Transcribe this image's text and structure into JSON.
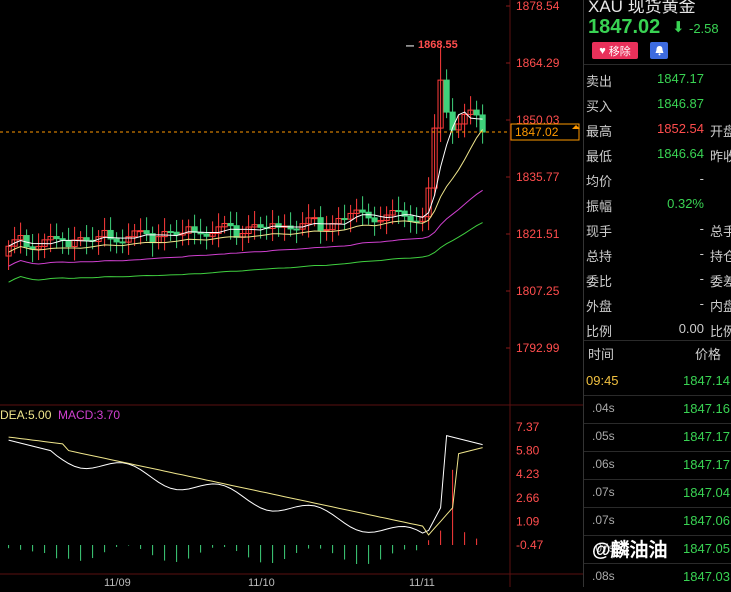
{
  "header": {
    "title": "XAU 现货黄金",
    "price": "1847.02",
    "change": "-2.58",
    "remove_label": "移除"
  },
  "quote_rows": [
    {
      "label": "卖出",
      "value": "1847.17",
      "color": "#39d353",
      "label2": ""
    },
    {
      "label": "买入",
      "value": "1846.87",
      "color": "#39d353",
      "label2": ""
    },
    {
      "label": "最高",
      "value": "1852.54",
      "color": "#ff4d4d",
      "label2": "开盘"
    },
    {
      "label": "最低",
      "value": "1846.64",
      "color": "#39d353",
      "label2": "昨收"
    },
    {
      "label": "均价",
      "value": "-",
      "color": "#cccccc",
      "label2": ""
    },
    {
      "label": "振幅",
      "value": "0.32%",
      "color": "#39d353",
      "label2": ""
    },
    {
      "label": "现手",
      "value": "-",
      "color": "#cccccc",
      "label2": "总手"
    },
    {
      "label": "总持",
      "value": "-",
      "color": "#cccccc",
      "label2": "持仓"
    },
    {
      "label": "委比",
      "value": "-",
      "color": "#cccccc",
      "label2": "委差"
    },
    {
      "label": "外盘",
      "value": "-",
      "color": "#cccccc",
      "label2": "内盘"
    },
    {
      "label": "比例",
      "value": "0.00",
      "color": "#cccccc",
      "label2": "比例"
    }
  ],
  "ticks_header": {
    "time": "时间",
    "price": "价格"
  },
  "ticks": [
    {
      "time": "09:45",
      "price": "1847.14"
    },
    {
      "time": ".04s",
      "price": "1847.16"
    },
    {
      "time": ".05s",
      "price": "1847.17"
    },
    {
      "time": ".06s",
      "price": "1847.17"
    },
    {
      "time": ".07s",
      "price": "1847.04"
    },
    {
      "time": ".07s",
      "price": "1847.06"
    },
    {
      "time": ".07s",
      "price": "1847.05"
    },
    {
      "time": ".08s",
      "price": "1847.03"
    }
  ],
  "watermark": "@麟油油",
  "chart": {
    "price_axis": [
      "1878.54",
      "1864.29",
      "1850.03",
      "1835.77",
      "1821.51",
      "1807.25",
      "1792.99"
    ],
    "current_price_label": "1847.02",
    "current_price": 1847.02,
    "peak_label": "1868.55",
    "macd_axis": [
      "7.37",
      "5.80",
      "4.23",
      "2.66",
      "1.09",
      "-0.47"
    ],
    "dea_label": "DEA:5.00",
    "macd_label": "MACD:3.70",
    "date_labels": [
      "11/09",
      "11/10",
      "11/11"
    ],
    "colors": {
      "up": "#ff3b3b",
      "down": "#3fd17a",
      "ma1": "#ffffff",
      "ma2": "#f0e68c",
      "ma3": "#d040d0",
      "ma4": "#40d040",
      "dash": "#ff9900"
    }
  }
}
